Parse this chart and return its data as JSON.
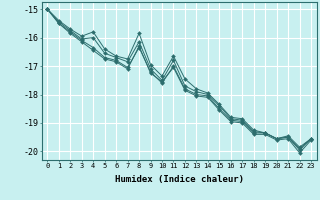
{
  "xlabel": "Humidex (Indice chaleur)",
  "ylabel": "",
  "xlim": [
    -0.5,
    23.5
  ],
  "ylim": [
    -20.3,
    -14.75
  ],
  "yticks": [
    -15,
    -16,
    -17,
    -18,
    -19,
    -20
  ],
  "xticks": [
    0,
    1,
    2,
    3,
    4,
    5,
    6,
    7,
    8,
    9,
    10,
    11,
    12,
    13,
    14,
    15,
    16,
    17,
    18,
    19,
    20,
    21,
    22,
    23
  ],
  "background_color": "#c8f0f0",
  "grid_color": "#ffffff",
  "line_color": "#2d6e6e",
  "series": [
    [
      -15.0,
      -15.4,
      -15.7,
      -15.95,
      -15.8,
      -16.4,
      -16.65,
      -16.75,
      -15.85,
      -16.95,
      -17.35,
      -16.65,
      -17.45,
      -17.8,
      -17.95,
      -18.35,
      -18.8,
      -18.85,
      -19.25,
      -19.35,
      -19.55,
      -19.45,
      -19.85,
      -19.55
    ],
    [
      -15.0,
      -15.45,
      -15.75,
      -16.05,
      -16.0,
      -16.55,
      -16.7,
      -16.85,
      -16.15,
      -17.1,
      -17.5,
      -16.8,
      -17.7,
      -17.9,
      -18.0,
      -18.4,
      -18.85,
      -18.9,
      -19.3,
      -19.35,
      -19.55,
      -19.5,
      -19.9,
      -19.55
    ],
    [
      -15.0,
      -15.5,
      -15.8,
      -16.1,
      -16.35,
      -16.7,
      -16.8,
      -17.05,
      -16.35,
      -17.2,
      -17.6,
      -17.0,
      -17.8,
      -18.0,
      -18.05,
      -18.5,
      -18.9,
      -18.95,
      -19.35,
      -19.35,
      -19.55,
      -19.5,
      -19.95,
      -19.55
    ],
    [
      -15.0,
      -15.5,
      -15.85,
      -16.15,
      -16.45,
      -16.75,
      -16.85,
      -17.1,
      -16.3,
      -17.25,
      -17.55,
      -17.05,
      -17.85,
      -18.05,
      -18.1,
      -18.55,
      -18.95,
      -19.0,
      -19.4,
      -19.4,
      -19.6,
      -19.55,
      -20.05,
      -19.6
    ]
  ]
}
